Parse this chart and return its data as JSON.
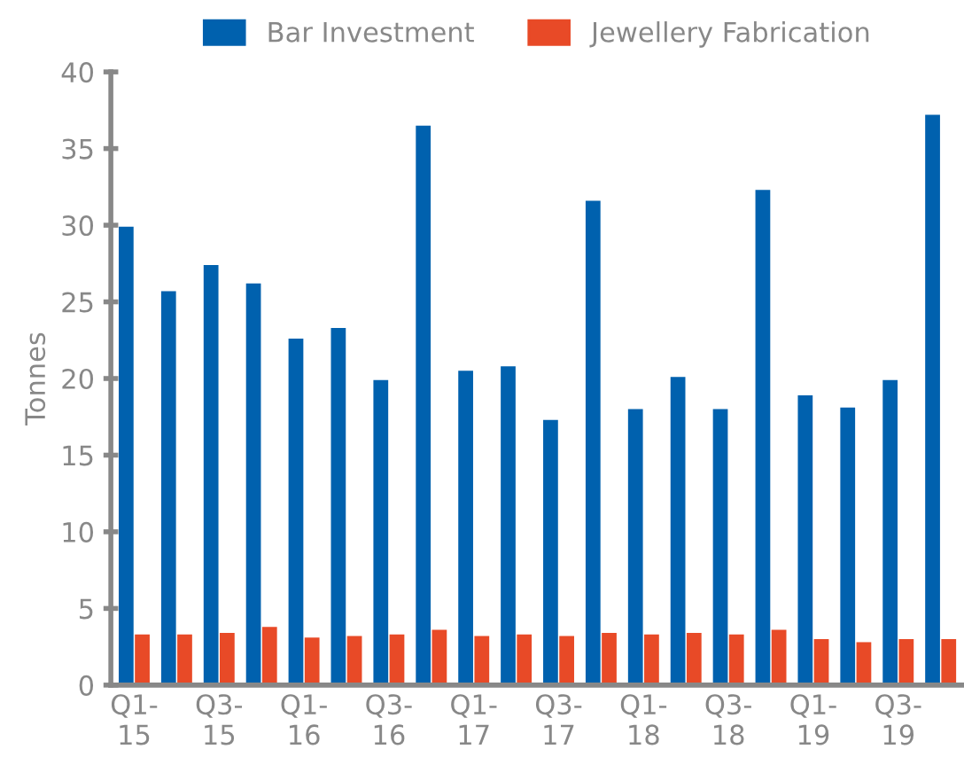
{
  "chart_data": {
    "type": "bar",
    "ylabel": "Tonnes",
    "categories": [
      "Q1-\n15",
      null,
      "Q3-\n15",
      null,
      "Q1-\n16",
      null,
      "Q3-\n16",
      null,
      "Q1-\n17",
      null,
      "Q3-\n17",
      null,
      "Q1-\n18",
      null,
      "Q3-\n18",
      null,
      "Q1-\n19",
      null,
      "Q3-\n19",
      null
    ],
    "series": [
      {
        "name": "Bar Investment",
        "color": "#0061ae",
        "values": [
          29.9,
          25.7,
          27.4,
          26.2,
          22.6,
          23.3,
          19.9,
          36.5,
          20.5,
          20.8,
          17.3,
          31.6,
          18.0,
          20.1,
          18.0,
          32.3,
          18.9,
          18.1,
          19.9,
          37.2
        ]
      },
      {
        "name": "Jewellery Fabrication",
        "color": "#e84a27",
        "values": [
          3.3,
          3.3,
          3.4,
          3.8,
          3.1,
          3.2,
          3.3,
          3.6,
          3.2,
          3.3,
          3.2,
          3.4,
          3.3,
          3.4,
          3.3,
          3.6,
          3.0,
          2.8,
          3.0,
          3.0
        ]
      }
    ],
    "ylim": [
      0,
      40
    ],
    "yticks": [
      0,
      5,
      10,
      15,
      20,
      25,
      30,
      35,
      40
    ],
    "grid": false,
    "legend": "top"
  }
}
